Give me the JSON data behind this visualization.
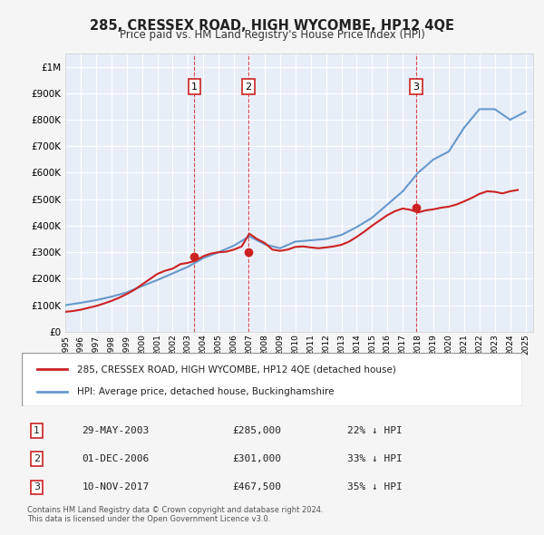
{
  "title": "285, CRESSEX ROAD, HIGH WYCOMBE, HP12 4QE",
  "subtitle": "Price paid vs. HM Land Registry's House Price Index (HPI)",
  "background_color": "#f0f4ff",
  "plot_bg_color": "#e8eef8",
  "grid_color": "#ffffff",
  "ylim": [
    0,
    1050000
  ],
  "yticks": [
    0,
    100000,
    200000,
    300000,
    400000,
    500000,
    600000,
    700000,
    800000,
    900000,
    1000000
  ],
  "ytick_labels": [
    "£0",
    "£100K",
    "£200K",
    "£300K",
    "£400K",
    "£500K",
    "£600K",
    "£700K",
    "£800K",
    "£900K",
    "£1M"
  ],
  "hpi_line_color": "#6699cc",
  "price_line_color": "#cc2222",
  "sale_marker_color": "#cc2222",
  "dashed_line_color": "#cc2222",
  "hpi_years": [
    1995,
    1996,
    1997,
    1998,
    1999,
    2000,
    2001,
    2002,
    2003,
    2004,
    2005,
    2006,
    2007,
    2008,
    2009,
    2010,
    2011,
    2012,
    2013,
    2014,
    2015,
    2016,
    2017,
    2018,
    2019,
    2020,
    2021,
    2022,
    2023,
    2024,
    2025
  ],
  "hpi_values": [
    100000,
    109000,
    119000,
    132000,
    148000,
    172000,
    195000,
    220000,
    245000,
    278000,
    300000,
    325000,
    360000,
    330000,
    315000,
    340000,
    345000,
    350000,
    365000,
    395000,
    430000,
    480000,
    530000,
    600000,
    650000,
    680000,
    770000,
    840000,
    840000,
    800000,
    830000
  ],
  "price_paid_years": [
    1995.0,
    1995.5,
    1996.0,
    1996.5,
    1997.0,
    1997.5,
    1998.0,
    1998.5,
    1999.0,
    1999.5,
    2000.0,
    2000.5,
    2001.0,
    2001.5,
    2002.0,
    2002.5,
    2003.0,
    2003.5,
    2004.0,
    2004.5,
    2005.0,
    2005.5,
    2006.0,
    2006.5,
    2007.0,
    2007.5,
    2008.0,
    2008.5,
    2009.0,
    2009.5,
    2010.0,
    2010.5,
    2011.0,
    2011.5,
    2012.0,
    2012.5,
    2013.0,
    2013.5,
    2014.0,
    2014.5,
    2015.0,
    2015.5,
    2016.0,
    2016.5,
    2017.0,
    2017.5,
    2018.0,
    2018.5,
    2019.0,
    2019.5,
    2020.0,
    2020.5,
    2021.0,
    2021.5,
    2022.0,
    2022.5,
    2023.0,
    2023.5,
    2024.0,
    2024.5
  ],
  "price_paid_values": [
    75000,
    78000,
    83000,
    90000,
    97000,
    106000,
    116000,
    128000,
    142000,
    158000,
    178000,
    198000,
    218000,
    230000,
    238000,
    255000,
    260000,
    268000,
    285000,
    295000,
    300000,
    302000,
    310000,
    322000,
    370000,
    350000,
    335000,
    310000,
    305000,
    310000,
    320000,
    322000,
    318000,
    315000,
    318000,
    322000,
    328000,
    340000,
    358000,
    378000,
    400000,
    420000,
    440000,
    455000,
    465000,
    460000,
    450000,
    458000,
    462000,
    468000,
    472000,
    480000,
    492000,
    505000,
    520000,
    530000,
    528000,
    522000,
    530000,
    535000
  ],
  "sale_events": [
    {
      "year": 2003.42,
      "price": 285000,
      "label": "1"
    },
    {
      "year": 2006.92,
      "price": 301000,
      "label": "2"
    },
    {
      "year": 2017.87,
      "price": 467500,
      "label": "3"
    }
  ],
  "legend_entries": [
    {
      "label": "285, CRESSEX ROAD, HIGH WYCOMBE, HP12 4QE (detached house)",
      "color": "#cc2222"
    },
    {
      "label": "HPI: Average price, detached house, Buckinghamshire",
      "color": "#6699cc"
    }
  ],
  "table_rows": [
    {
      "num": "1",
      "date": "29-MAY-2003",
      "price": "£285,000",
      "hpi": "22% ↓ HPI"
    },
    {
      "num": "2",
      "date": "01-DEC-2006",
      "price": "£301,000",
      "hpi": "33% ↓ HPI"
    },
    {
      "num": "3",
      "date": "10-NOV-2017",
      "price": "£467,500",
      "hpi": "35% ↓ HPI"
    }
  ],
  "footer": "Contains HM Land Registry data © Crown copyright and database right 2024.\nThis data is licensed under the Open Government Licence v3.0.",
  "xmin": 1995,
  "xmax": 2025.5
}
